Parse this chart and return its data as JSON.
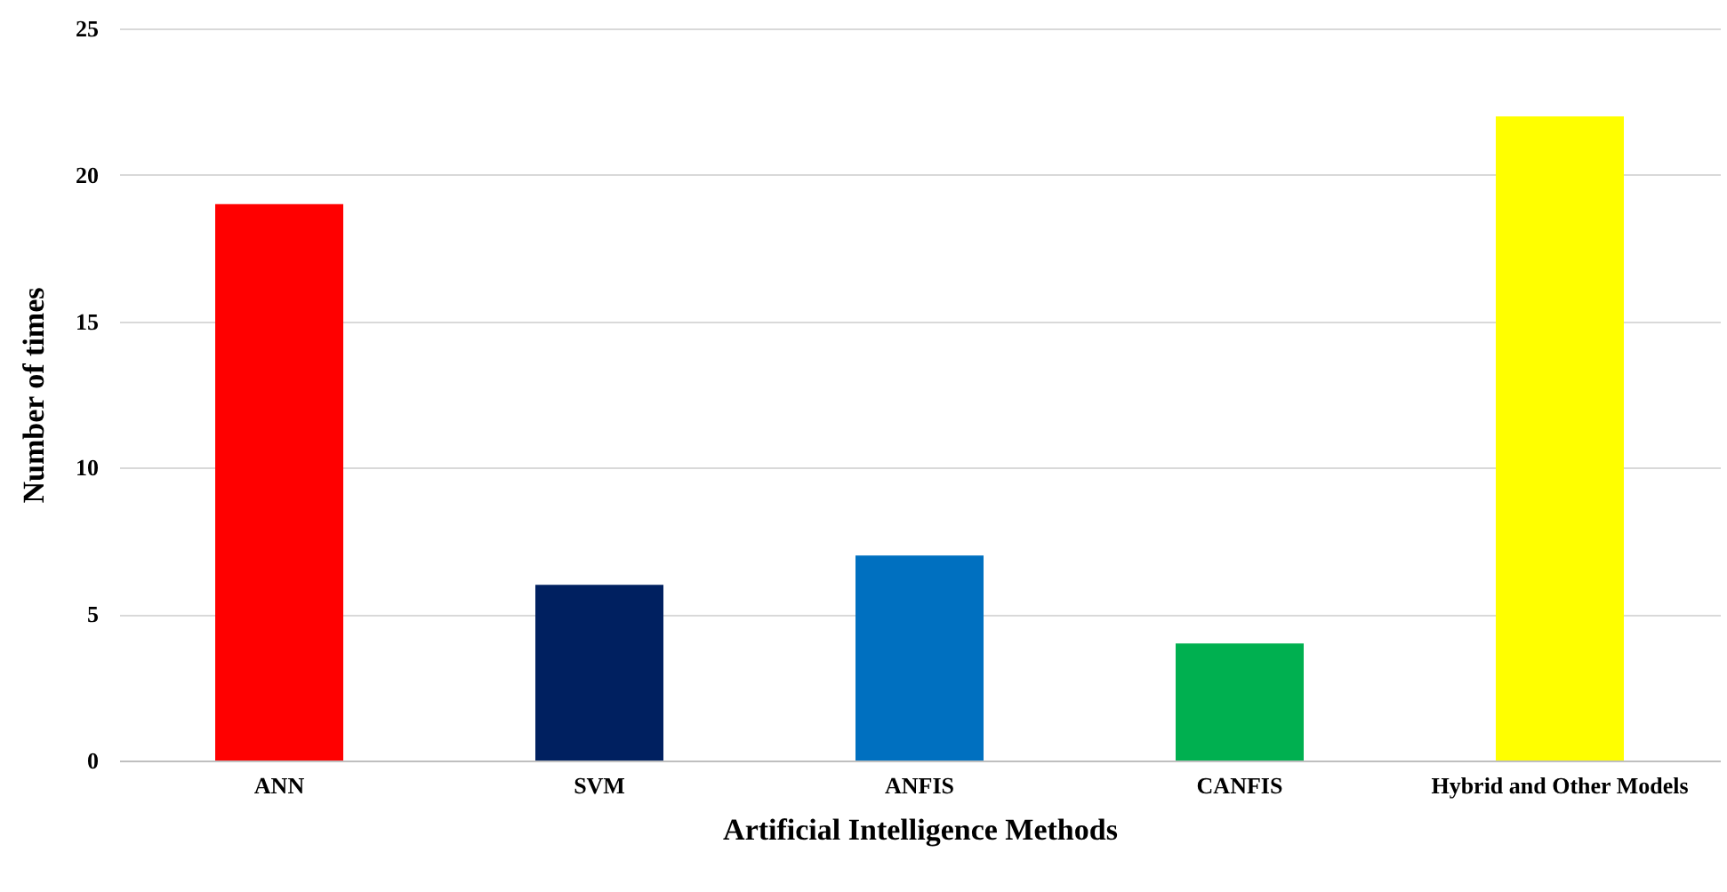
{
  "chart_data": {
    "type": "bar",
    "xlabel": "Artificial Intelligence Methods",
    "ylabel": "Number of times",
    "categories": [
      "ANN",
      "SVM",
      "ANFIS",
      "CANFIS",
      "Hybrid and Other Models"
    ],
    "values": [
      19,
      6,
      7,
      4,
      22
    ],
    "colors": [
      "#ff0000",
      "#002060",
      "#0070c0",
      "#00b050",
      "#ffff00"
    ],
    "ylim": [
      0,
      25
    ],
    "yticks": [
      0,
      5,
      10,
      15,
      20,
      25
    ],
    "grid": "y",
    "legend": false
  }
}
